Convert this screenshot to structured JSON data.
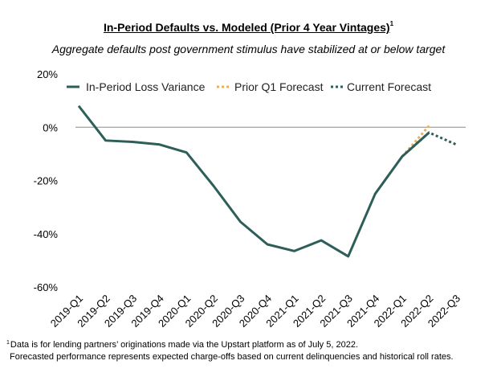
{
  "title": "In-Period Defaults vs. Modeled (Prior 4 Year Vintages)",
  "title_footnote_mark": "1",
  "subtitle": "Aggregate defaults post government stimulus have stabilized at or below target",
  "footnotes": {
    "mark": "1",
    "line1": "Data is for lending partners’ originations made via the Upstart platform as of July 5, 2022.",
    "line2": "Forecasted performance represents expected charge-offs based on current delinquencies and historical roll rates."
  },
  "chart_data": {
    "type": "line",
    "title": "In-Period Defaults vs. Modeled (Prior 4 Year Vintages)",
    "subtitle": "Aggregate defaults post government stimulus have stabilized at or below target",
    "categories": [
      "2019-Q1",
      "2019-Q2",
      "2019-Q3",
      "2019-Q4",
      "2020-Q1",
      "2020-Q2",
      "2020-Q3",
      "2020-Q4",
      "2021-Q1",
      "2021-Q2",
      "2021-Q3",
      "2021-Q4",
      "2022-Q1",
      "2022-Q2",
      "2022-Q3"
    ],
    "ylim": [
      -60,
      20
    ],
    "yticks": [
      -60,
      -40,
      -20,
      0,
      20
    ],
    "yticklabels": [
      "-60%",
      "-40%",
      "-20%",
      "0%",
      "20%"
    ],
    "grid": false,
    "legend_position": "top",
    "series": [
      {
        "name": "In-Period Loss Variance",
        "style": "solid",
        "color": "#2e5e58",
        "values": [
          8,
          -5,
          -5.5,
          -6.5,
          -9.5,
          -22,
          -35.5,
          -44,
          -46.5,
          -42.5,
          -48.5,
          -25,
          -11,
          -2,
          null
        ]
      },
      {
        "name": "Prior Q1 Forecast",
        "style": "dotted",
        "color": "#e8b05c",
        "values": [
          null,
          null,
          null,
          null,
          null,
          null,
          null,
          null,
          null,
          null,
          null,
          null,
          -11,
          0.5,
          null
        ]
      },
      {
        "name": "Current Forecast",
        "style": "dotted",
        "color": "#2e5e58",
        "values": [
          null,
          null,
          null,
          null,
          null,
          null,
          null,
          null,
          null,
          null,
          null,
          null,
          -11,
          -2,
          -6.5
        ]
      }
    ]
  }
}
